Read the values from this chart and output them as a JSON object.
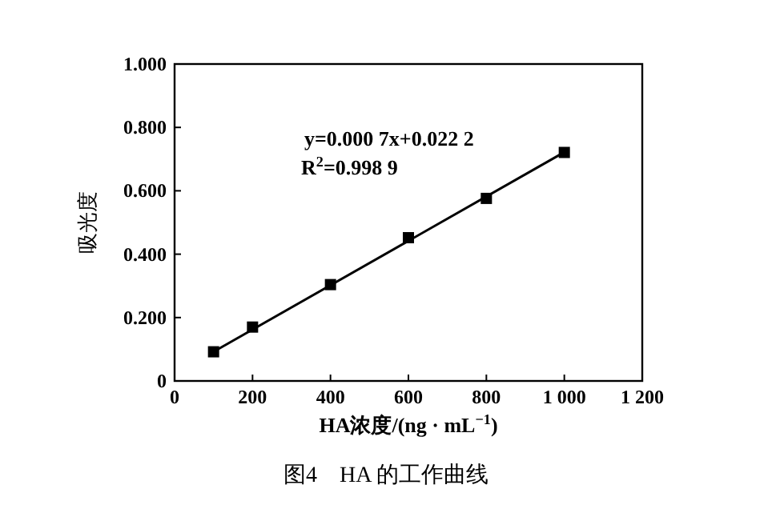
{
  "chart_data": {
    "type": "scatter",
    "xlabel": "HA浓度/(ng · mL$^{−1}$)",
    "ylabel": "吸光度",
    "annotations": [
      "y=0.000 7x+0.022 2",
      "R$^{2}$=0.998 9",
      "图4　HA 的工作曲线"
    ],
    "xlim": [
      0,
      1200
    ],
    "ylim": [
      0,
      1
    ],
    "xticks": [
      0,
      200,
      400,
      600,
      800,
      {
        "value": 1000,
        "label": "1 000"
      },
      {
        "value": 1200,
        "label": "1 200"
      }
    ],
    "yticks": [
      0,
      {
        "value": 0.2,
        "label": "0.200"
      },
      {
        "value": 0.4,
        "label": "0.400"
      },
      {
        "value": 0.6,
        "label": "0.600"
      },
      {
        "value": 0.8,
        "label": "0.800"
      },
      {
        "value": 1,
        "label": "1.000"
      }
    ],
    "series": [
      {
        "type": "scatter",
        "color": "#000000",
        "marker": "square",
        "x": [
          100,
          200,
          400,
          600,
          800,
          1000
        ],
        "values": [
          0.092,
          0.17,
          0.304,
          0.452,
          0.576,
          0.721
        ]
      },
      {
        "type": "line",
        "color": "#000000",
        "marker": "none",
        "line_style": "solid",
        "x": [
          100,
          1000
        ],
        "values": [
          0.092,
          0.722
        ]
      }
    ]
  }
}
